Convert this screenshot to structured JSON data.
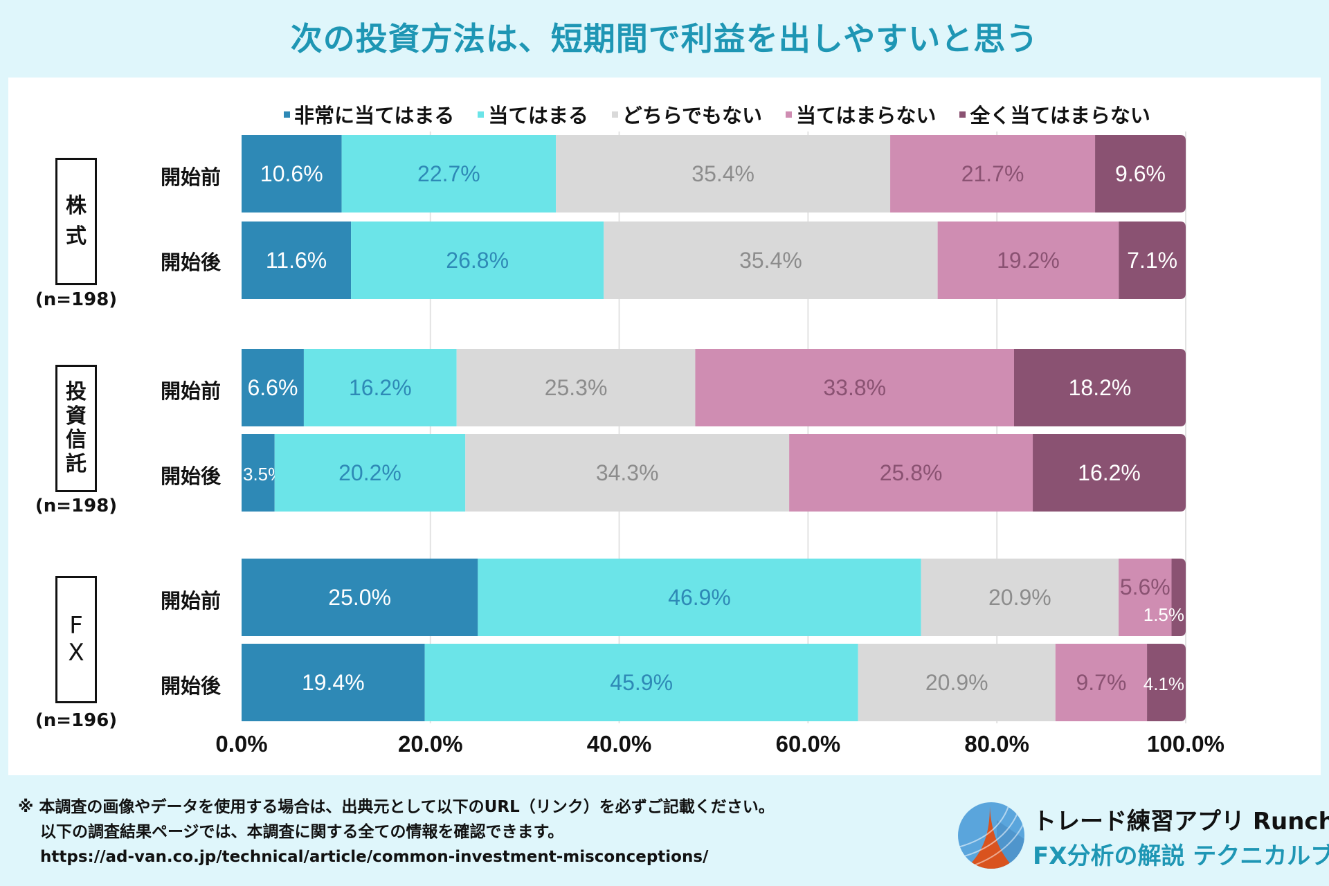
{
  "title": "次の投資方法は、短期間で利益を出しやすいと思う",
  "colors": {
    "background": "#dff6fb",
    "title": "#1e96b4",
    "series": [
      "#2e89b6",
      "#6be4e8",
      "#d9d9d9",
      "#cf8db2",
      "#8a5272"
    ],
    "label_colors": [
      "#ffffff",
      "#2e89b6",
      "#8c8c8c",
      "#8a5272",
      "#ffffff"
    ]
  },
  "legend": [
    {
      "label": "非常に当てはまる"
    },
    {
      "label": "当てはまる"
    },
    {
      "label": "どちらでもない"
    },
    {
      "label": "当てはまらない"
    },
    {
      "label": "全く当てはまらない"
    }
  ],
  "categories": [
    {
      "name_chars": [
        "株",
        "式"
      ],
      "n_label": "(n=198)"
    },
    {
      "name_chars": [
        "投",
        "資",
        "信",
        "託"
      ],
      "n_label": "(n=198)"
    },
    {
      "name_chars": [
        "F",
        "X"
      ],
      "n_label": "(n=196)"
    }
  ],
  "chart_data": {
    "type": "bar",
    "orientation": "horizontal",
    "stacked": true,
    "normalized": true,
    "title": "次の投資方法は、短期間で利益を出しやすいと思う",
    "xlabel": "",
    "ylabel": "",
    "xlim": [
      0,
      100
    ],
    "x_ticks": [
      "0.0%",
      "20.0%",
      "40.0%",
      "60.0%",
      "80.0%",
      "100.0%"
    ],
    "legend_position": "top",
    "grid": true,
    "series_names": [
      "非常に当てはまる",
      "当てはまる",
      "どちらでもない",
      "当てはまらない",
      "全く当てはまらない"
    ],
    "groups": [
      {
        "name": "株式",
        "n": 198,
        "rows": [
          {
            "label": "開始前",
            "values": [
              10.6,
              22.7,
              35.4,
              21.7,
              9.6
            ]
          },
          {
            "label": "開始後",
            "values": [
              11.6,
              26.8,
              35.4,
              19.2,
              7.1
            ]
          }
        ]
      },
      {
        "name": "投資信託",
        "n": 198,
        "rows": [
          {
            "label": "開始前",
            "values": [
              6.6,
              16.2,
              25.3,
              33.8,
              18.2
            ]
          },
          {
            "label": "開始後",
            "values": [
              3.5,
              20.2,
              34.3,
              25.8,
              16.2
            ]
          }
        ]
      },
      {
        "name": "FX",
        "n": 196,
        "rows": [
          {
            "label": "開始前",
            "values": [
              25.0,
              46.9,
              20.9,
              5.6,
              1.5
            ]
          },
          {
            "label": "開始後",
            "values": [
              19.4,
              45.9,
              20.9,
              9.7,
              4.1
            ]
          }
        ]
      }
    ]
  },
  "footer": {
    "note_line1": "※ 本調査の画像やデータを使用する場合は、出典元として以下のURL（リンク）を必ずご記載ください。",
    "note_line2": "以下の調査結果ページでは、本調査に関する全ての情報を確認できます。",
    "url": "https://ad-van.co.jp/technical/article/common-investment-misconceptions/"
  },
  "brand": {
    "title": "トレード練習アプリ  Runcha",
    "subtitle": "FX分析の解説  テクニカルブック",
    "logo_icon": "runcha-logo-icon"
  }
}
